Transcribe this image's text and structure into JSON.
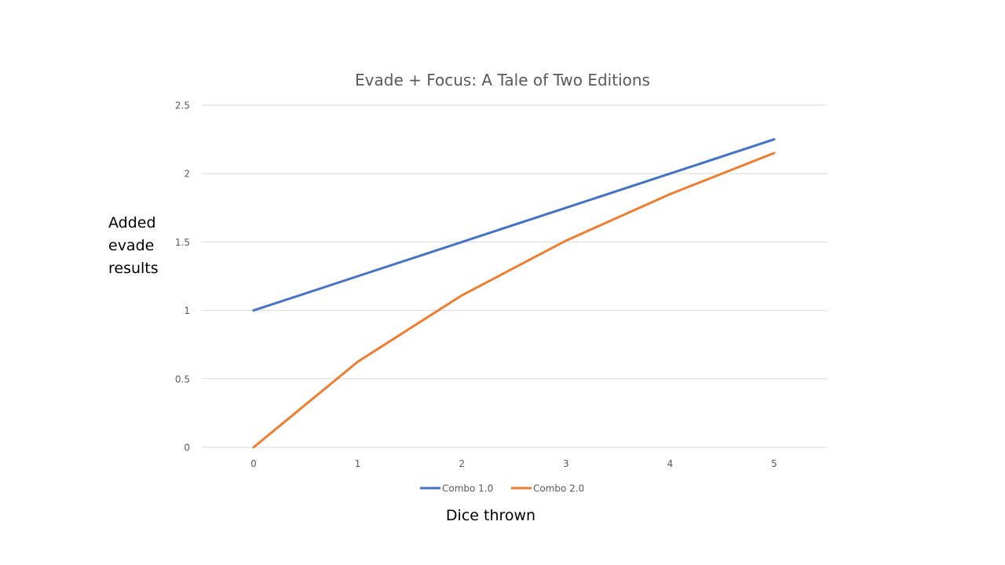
{
  "chart_data": {
    "type": "line",
    "title": "Evade + Focus: A Tale of Two Editions",
    "xlabel": "Dice thrown",
    "ylabel_lines": [
      "Added",
      "evade",
      "results"
    ],
    "categories": [
      "0",
      "1",
      "2",
      "3",
      "4",
      "5"
    ],
    "x": [
      0,
      1,
      2,
      3,
      4,
      5
    ],
    "ylim": [
      0,
      2.5
    ],
    "yticks": [
      "0",
      "0.5",
      "1",
      "1.5",
      "2",
      "2.5"
    ],
    "grid": true,
    "legend_position": "bottom",
    "series": [
      {
        "name": "Combo 1.0",
        "color": "#4472C4",
        "values": [
          1.0,
          1.25,
          1.5,
          1.75,
          2.0,
          2.25
        ]
      },
      {
        "name": "Combo 2.0",
        "color": "#ED7D31",
        "values": [
          0.0,
          0.625,
          1.11,
          1.51,
          1.85,
          2.15
        ]
      }
    ]
  }
}
